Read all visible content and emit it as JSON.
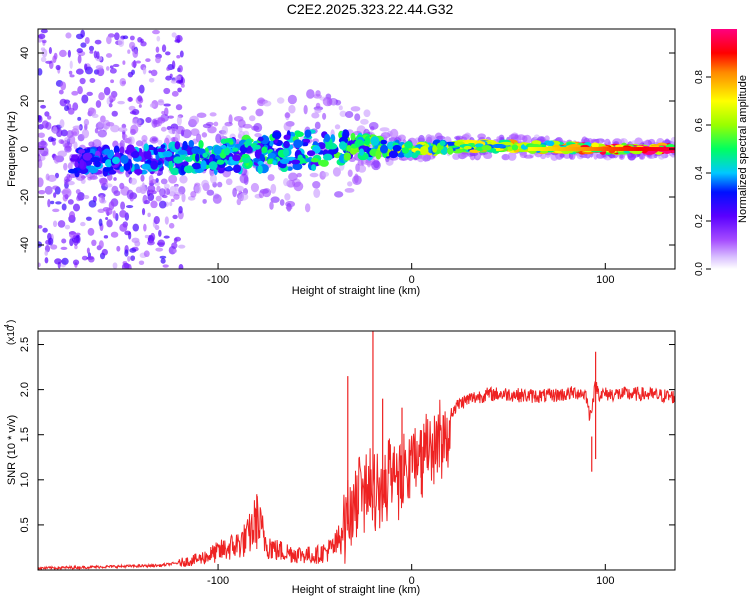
{
  "chart_data": [
    {
      "type": "heatmap",
      "title": "C2E2.2025.323.22.44.G32",
      "xlabel": "Height of straight line (km)",
      "ylabel": "Frequency (Hz)",
      "xlim": [
        -193,
        136
      ],
      "ylim": [
        -50,
        50
      ],
      "xticks": [
        -100,
        0,
        100
      ],
      "xtick_labels": [
        "-100",
        "0",
        "100"
      ],
      "yticks": [
        -40,
        -20,
        0,
        20,
        40
      ],
      "ytick_labels": [
        "-40",
        "-20",
        "0",
        "20",
        "40"
      ],
      "colorbar": {
        "label": "Normalized spectral amplitude",
        "range": [
          0,
          1
        ],
        "ticks": [
          0.0,
          0.2,
          0.4,
          0.6,
          0.8
        ],
        "tick_labels": [
          "0.0",
          "0.2",
          "0.4",
          "0.6",
          "0.8"
        ],
        "colors": [
          "#ffffff",
          "#c8a0ff",
          "#9b00ff",
          "#3f00ff",
          "#0020ff",
          "#00ccff",
          "#00ff66",
          "#a0ff00",
          "#ffff00",
          "#ff9900",
          "#ff0000",
          "#ff0080"
        ]
      },
      "ridge": {
        "description": "narrow band near 0 Hz",
        "x": [
          -193,
          -150,
          -100,
          -50,
          -20,
          0,
          20,
          60,
          100,
          136
        ],
        "center_hz": [
          -5,
          -5,
          -3,
          0,
          1,
          0,
          1,
          1,
          0,
          0
        ],
        "half_width_hz": [
          5,
          5,
          6,
          8,
          4,
          2,
          2,
          2,
          1.5,
          1.5
        ],
        "amplitude": [
          0.3,
          0.35,
          0.45,
          0.45,
          0.5,
          0.6,
          0.65,
          0.7,
          0.85,
          0.95
        ]
      }
    },
    {
      "type": "line",
      "xlabel": "Height of straight line (km)",
      "ylabel": "SNR (10 * v/v)",
      "y_multiplier": "(x10",
      "y_multiplier_exp": "4",
      "y_multiplier_close": ")",
      "xlim": [
        -193,
        136
      ],
      "ylim": [
        0,
        2.65
      ],
      "xticks": [
        -100,
        0,
        100
      ],
      "xtick_labels": [
        "-100",
        "0",
        "100"
      ],
      "yticks": [
        0.5,
        1.0,
        1.5,
        2.0,
        2.5
      ],
      "ytick_labels": [
        "0.5",
        "1.0",
        "1.5",
        "2.0",
        "2.5"
      ],
      "color": "#ee2222",
      "series": [
        {
          "name": "SNR",
          "x": [
            -193,
            -170,
            -150,
            -130,
            -120,
            -110,
            -100,
            -90,
            -85,
            -80,
            -78,
            -75,
            -70,
            -60,
            -50,
            -45,
            -40,
            -37,
            -35,
            -33,
            -30,
            -25,
            -22,
            -20,
            -15,
            -10,
            -5,
            0,
            5,
            10,
            15,
            20,
            25,
            30,
            40,
            50,
            60,
            70,
            80,
            85,
            90,
            92,
            95,
            97,
            100,
            110,
            120,
            136
          ],
          "y": [
            0.02,
            0.03,
            0.04,
            0.05,
            0.08,
            0.12,
            0.2,
            0.28,
            0.35,
            0.55,
            0.45,
            0.3,
            0.22,
            0.18,
            0.16,
            0.2,
            0.25,
            0.35,
            0.65,
            0.85,
            0.95,
            1.1,
            1.25,
            1.15,
            1.15,
            1.2,
            1.25,
            1.3,
            1.4,
            1.5,
            1.6,
            1.75,
            1.85,
            1.9,
            1.95,
            1.95,
            1.93,
            1.93,
            1.95,
            1.97,
            1.95,
            1.7,
            2.05,
            1.95,
            1.95,
            1.95,
            1.95,
            1.92
          ],
          "spikes": [
            {
              "x": -80,
              "y": 0.84
            },
            {
              "x": -33,
              "y": 2.15
            },
            {
              "x": -20,
              "y": 2.65
            },
            {
              "x": -15,
              "y": 1.9
            },
            {
              "x": -5,
              "y": 1.8
            },
            {
              "x": 5,
              "y": 1.55
            },
            {
              "x": 95,
              "y": 2.42
            },
            {
              "x": 93,
              "y": 1.48
            }
          ]
        }
      ]
    }
  ]
}
